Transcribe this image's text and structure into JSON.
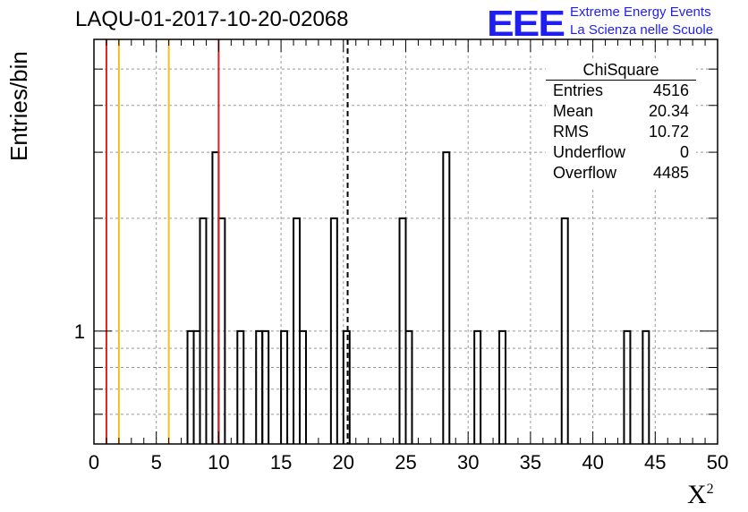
{
  "header": {
    "title": "LAQU-01-2017-10-20-02068",
    "logo_mark": "EEE",
    "logo_line1": "Extreme Energy Events",
    "logo_line2": "La Scienza nelle Scuole"
  },
  "axes": {
    "ylabel": "Entries/bin",
    "xlabel": "X",
    "xlabel_sup": "2"
  },
  "stats": {
    "name": "ChiSquare",
    "rows": [
      {
        "label": "Entries",
        "value": "4516"
      },
      {
        "label": "Mean",
        "value": "20.34"
      },
      {
        "label": "RMS",
        "value": "10.72"
      },
      {
        "label": "Underflow",
        "value": "0"
      },
      {
        "label": "Overflow",
        "value": "4485"
      }
    ]
  },
  "colors": {
    "red": "#e0201c",
    "orange": "#f0c020",
    "logo_blue": "#1f1ff0",
    "grid": "#999999"
  },
  "chart_data": {
    "type": "histogram",
    "title": "LAQU-01-2017-10-20-02068",
    "xlabel": "X^2",
    "ylabel": "Entries/bin",
    "xlim": [
      0,
      50
    ],
    "ylog": true,
    "ylim": [
      0.5,
      6
    ],
    "bin_width": 0.5,
    "xticks": [
      0,
      5,
      10,
      15,
      20,
      25,
      30,
      35,
      40,
      45,
      50
    ],
    "yticks": [
      1
    ],
    "bins": [
      {
        "x": 7.5,
        "count": 1
      },
      {
        "x": 8.0,
        "count": 1
      },
      {
        "x": 8.5,
        "count": 2
      },
      {
        "x": 9.5,
        "count": 3
      },
      {
        "x": 10.0,
        "count": 2
      },
      {
        "x": 11.5,
        "count": 1
      },
      {
        "x": 13.0,
        "count": 1
      },
      {
        "x": 13.5,
        "count": 1
      },
      {
        "x": 15.0,
        "count": 1
      },
      {
        "x": 16.0,
        "count": 2
      },
      {
        "x": 16.5,
        "count": 1
      },
      {
        "x": 19.0,
        "count": 2
      },
      {
        "x": 20.0,
        "count": 1
      },
      {
        "x": 24.5,
        "count": 2
      },
      {
        "x": 25.0,
        "count": 1
      },
      {
        "x": 28.0,
        "count": 3
      },
      {
        "x": 30.5,
        "count": 1
      },
      {
        "x": 32.5,
        "count": 1
      },
      {
        "x": 37.5,
        "count": 2
      },
      {
        "x": 42.5,
        "count": 1
      },
      {
        "x": 44.0,
        "count": 1
      }
    ],
    "vertical_lines": [
      {
        "x": 1,
        "color": "red",
        "style": "solid"
      },
      {
        "x": 2,
        "color": "orange",
        "style": "solid"
      },
      {
        "x": 6,
        "color": "orange",
        "style": "solid"
      },
      {
        "x": 10,
        "color": "red",
        "style": "solid"
      },
      {
        "x": 20.34,
        "color": "black",
        "style": "dashed"
      }
    ]
  }
}
